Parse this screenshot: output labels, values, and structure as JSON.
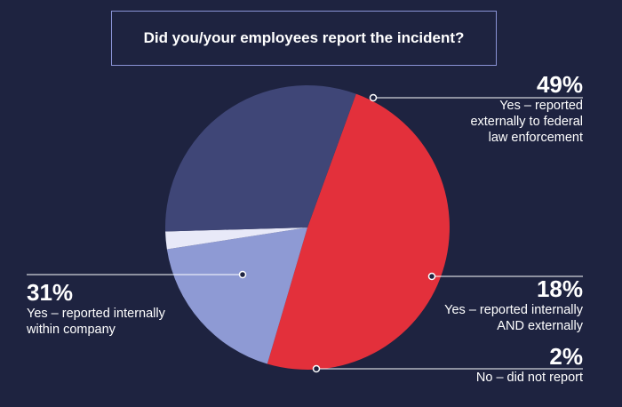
{
  "chart_data": {
    "type": "pie",
    "title": "Did you/your employees report the incident?",
    "slices": [
      {
        "label": "Yes – reported externally to federal law enforcement",
        "value": 49,
        "value_label": "49%",
        "color": "#e3303b"
      },
      {
        "label": "Yes – reported internally AND externally",
        "value": 18,
        "value_label": "18%",
        "color": "#8e9ad4"
      },
      {
        "label": "No – did not report",
        "value": 2,
        "value_label": "2%",
        "color": "#e8e9f8"
      },
      {
        "label": "Yes – reported internally within company",
        "value": 31,
        "value_label": "31%",
        "color": "#3f4677"
      }
    ],
    "colors": {
      "background": "#1e2340",
      "title_border": "#8a93d6",
      "text": "#ffffff"
    }
  },
  "labels": {
    "s0": {
      "pct": "49%",
      "line1": "Yes – reported",
      "line2": "externally to federal",
      "line3": "law enforcement"
    },
    "s1": {
      "pct": "18%",
      "line1": "Yes – reported internally",
      "line2": "AND externally"
    },
    "s2": {
      "pct": "2%",
      "line1": "No – did not report"
    },
    "s3": {
      "pct": "31%",
      "line1": "Yes – reported internally",
      "line2": "within company"
    }
  }
}
